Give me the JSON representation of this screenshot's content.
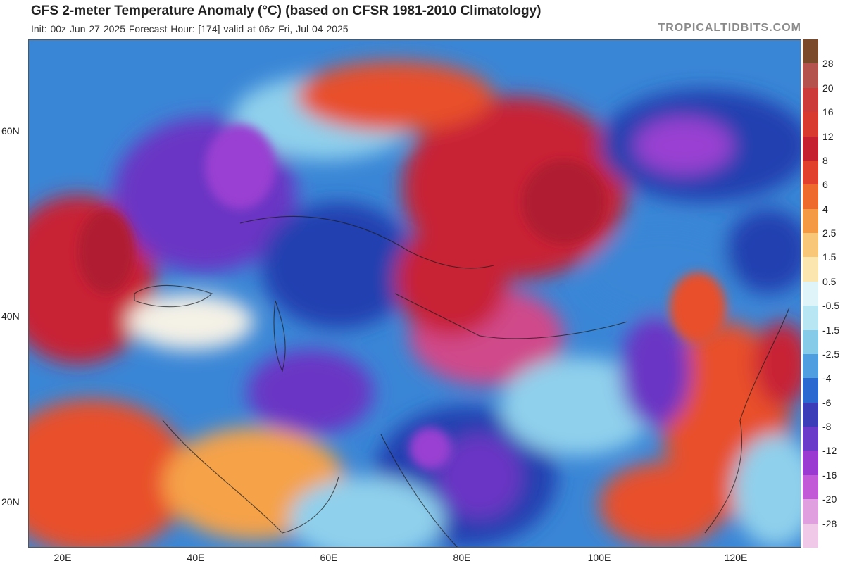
{
  "header": {
    "title": "GFS 2-meter Temperature Anomaly (°C) (based on CFSR 1981-2010 Climatology)",
    "subtitle": "Init: 00z Jun 27 2025   Forecast Hour: [174]   valid at 06z Fri, Jul 04 2025",
    "site": "TROPICALTIDBITS.COM"
  },
  "colorbar": {
    "labels": [
      "28",
      "20",
      "16",
      "12",
      "8",
      "6",
      "4",
      "2.5",
      "1.5",
      "0.5",
      "-0.5",
      "-1.5",
      "-2.5",
      "-4",
      "-6",
      "-8",
      "-12",
      "-16",
      "-20",
      "-28"
    ],
    "colors": [
      "#7a4a2a",
      "#b4524e",
      "#cc3a3a",
      "#d93a30",
      "#c52030",
      "#e0402c",
      "#ee6a2c",
      "#f59a44",
      "#f8c878",
      "#fbe6b0",
      "#dff4f8",
      "#b8e6f2",
      "#86cce8",
      "#4e9ee0",
      "#2a6ad0",
      "#3a3cb8",
      "#6a3ac8",
      "#9a3ad0",
      "#c25ad8",
      "#e0a0e0",
      "#f0c8e8"
    ]
  },
  "axes": {
    "lat_labels": [
      "60N",
      "40N",
      "20N"
    ],
    "lon_labels": [
      "20E",
      "40E",
      "60E",
      "80E",
      "100E",
      "120E"
    ]
  },
  "colors": {
    "strong_warm": "#c82236",
    "warm": "#e8502c",
    "mild_warm": "#f5a24a",
    "neutral": "#f4f1e6",
    "cool": "#8fd0ec",
    "mid_cool": "#3a86d6",
    "cold": "#2440b0",
    "very_cold": "#6a34c4",
    "extreme_cold": "#9a40d2",
    "warm_pink": "#d04a8a"
  }
}
